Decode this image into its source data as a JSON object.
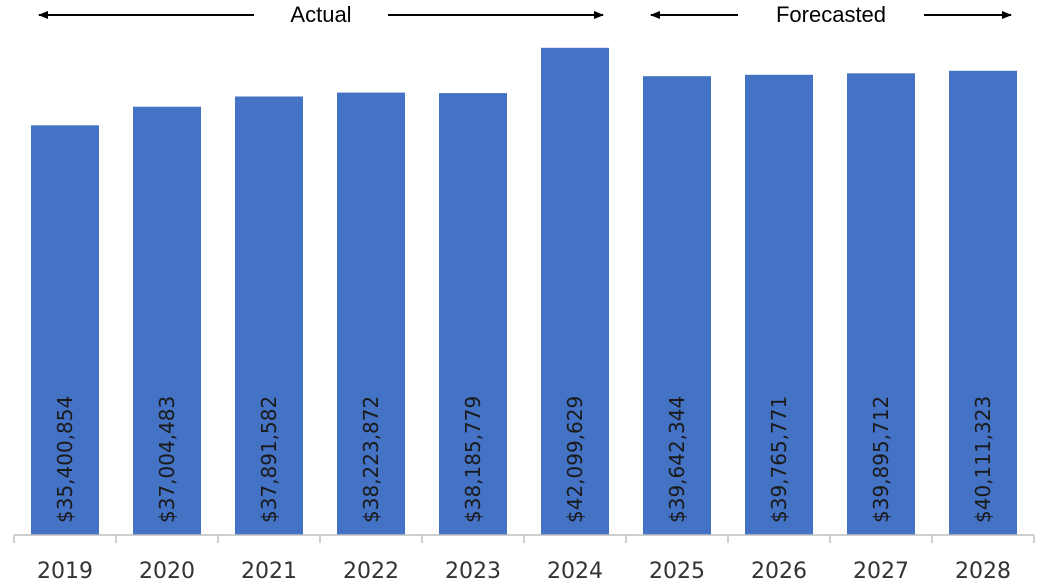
{
  "periods": [
    {
      "label": "Actual",
      "from": "2019",
      "to": "2024"
    },
    {
      "label": "Forecasted",
      "from": "2025",
      "to": "2028"
    }
  ],
  "colors": {
    "bar": "#4472C4",
    "axis": "#bfbfbf",
    "arrow": "#000000"
  },
  "chart_data": {
    "type": "bar",
    "title": "",
    "xlabel": "",
    "ylabel": "",
    "categories": [
      "2019",
      "2020",
      "2021",
      "2022",
      "2023",
      "2024",
      "2025",
      "2026",
      "2027",
      "2028"
    ],
    "values": [
      35400854,
      37004483,
      37891582,
      38223872,
      38185779,
      42099629,
      39642344,
      39765771,
      39895712,
      40111323
    ],
    "data_labels": [
      "$35,400,854",
      "$37,004,483",
      "$37,891,582",
      "$38,223,872",
      "$38,185,779",
      "$42,099,629",
      "$39,642,344",
      "$39,765,771",
      "$39,895,712",
      "$40,111,323"
    ],
    "ylim": [
      0,
      44500000
    ],
    "grid": false,
    "legend": "none"
  }
}
